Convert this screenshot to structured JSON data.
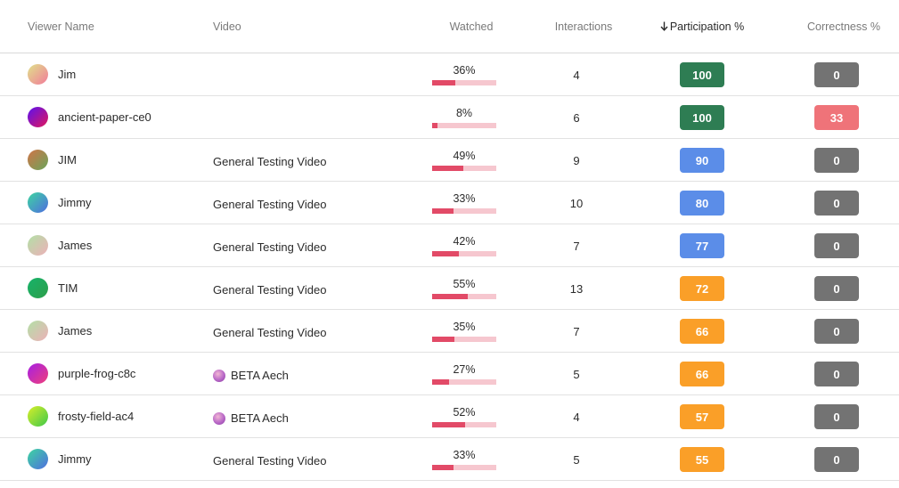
{
  "header": {
    "viewer_name": "Viewer Name",
    "video": "Video",
    "watched": "Watched",
    "interactions": "Interactions",
    "participation": "Participation %",
    "correctness": "Correctness %",
    "sort_icon": "arrow-down-icon"
  },
  "colors": {
    "green": "#2e7d53",
    "blue": "#5b8de8",
    "orange": "#fa9f28",
    "gray": "#737373",
    "red": "#ef7379",
    "bar_fill": "#e24a67",
    "bar_track": "#f6c7cf"
  },
  "rows": [
    {
      "name": "Jim",
      "video": "",
      "video_icon": false,
      "watched": "36%",
      "watched_fraction": 0.36,
      "interactions": "4",
      "participation": "100",
      "participation_color": "green",
      "correctness": "0",
      "correctness_color": "gray",
      "avatar": "linear-gradient(135deg,#dfe28a,#f27b9a)"
    },
    {
      "name": "ancient-paper-ce0",
      "video": "",
      "video_icon": false,
      "watched": "8%",
      "watched_fraction": 0.08,
      "interactions": "6",
      "participation": "100",
      "participation_color": "green",
      "correctness": "33",
      "correctness_color": "red",
      "avatar": "linear-gradient(135deg,#5a11f0,#e2185a)"
    },
    {
      "name": "JIM",
      "video": "General Testing Video",
      "video_icon": false,
      "watched": "49%",
      "watched_fraction": 0.49,
      "interactions": "9",
      "participation": "90",
      "participation_color": "blue",
      "correctness": "0",
      "correctness_color": "gray",
      "avatar": "linear-gradient(135deg,#d07448,#6aa55a)"
    },
    {
      "name": "Jimmy",
      "video": "General Testing Video",
      "video_icon": false,
      "watched": "33%",
      "watched_fraction": 0.33,
      "interactions": "10",
      "participation": "80",
      "participation_color": "blue",
      "correctness": "0",
      "correctness_color": "gray",
      "avatar": "linear-gradient(135deg,#3dd6a0,#4f6de0)"
    },
    {
      "name": "James",
      "video": "General Testing Video",
      "video_icon": false,
      "watched": "42%",
      "watched_fraction": 0.42,
      "interactions": "7",
      "participation": "77",
      "participation_color": "blue",
      "correctness": "0",
      "correctness_color": "gray",
      "avatar": "linear-gradient(135deg,#b2e0a6,#edb0b8)"
    },
    {
      "name": "TIM",
      "video": "General Testing Video",
      "video_icon": false,
      "watched": "55%",
      "watched_fraction": 0.55,
      "interactions": "13",
      "participation": "72",
      "participation_color": "orange",
      "correctness": "0",
      "correctness_color": "gray",
      "avatar": "linear-gradient(135deg,#16b36a,#2d9e4a)"
    },
    {
      "name": "James",
      "video": "General Testing Video",
      "video_icon": false,
      "watched": "35%",
      "watched_fraction": 0.35,
      "interactions": "7",
      "participation": "66",
      "participation_color": "orange",
      "correctness": "0",
      "correctness_color": "gray",
      "avatar": "linear-gradient(135deg,#b2e0a6,#edb0b8)"
    },
    {
      "name": "purple-frog-c8c",
      "video": "BETA Aech",
      "video_icon": true,
      "watched": "27%",
      "watched_fraction": 0.27,
      "interactions": "5",
      "participation": "66",
      "participation_color": "orange",
      "correctness": "0",
      "correctness_color": "gray",
      "avatar": "linear-gradient(135deg,#a51ee6,#f0407a)"
    },
    {
      "name": "frosty-field-ac4",
      "video": "BETA Aech",
      "video_icon": true,
      "watched": "52%",
      "watched_fraction": 0.52,
      "interactions": "4",
      "participation": "57",
      "participation_color": "orange",
      "correctness": "0",
      "correctness_color": "gray",
      "avatar": "linear-gradient(135deg,#d9ee2a,#3ec84a)"
    },
    {
      "name": "Jimmy",
      "video": "General Testing Video",
      "video_icon": false,
      "watched": "33%",
      "watched_fraction": 0.33,
      "interactions": "5",
      "participation": "55",
      "participation_color": "orange",
      "correctness": "0",
      "correctness_color": "gray",
      "avatar": "linear-gradient(135deg,#3dd6a0,#4f6de0)"
    }
  ]
}
